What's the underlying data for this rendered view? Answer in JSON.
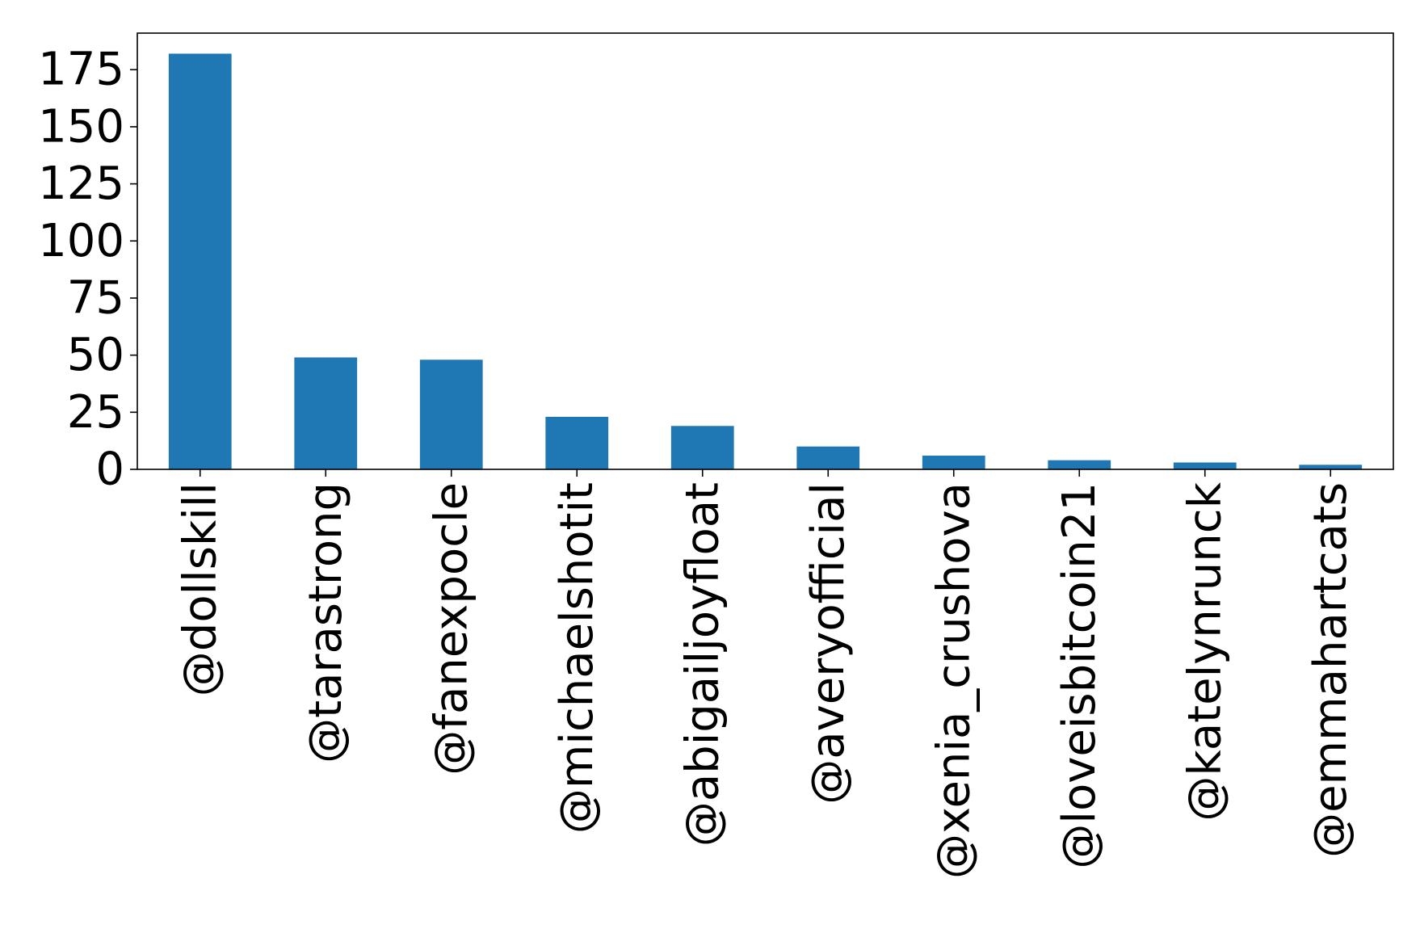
{
  "chart_data": {
    "type": "bar",
    "title": "",
    "xlabel": "",
    "ylabel": "",
    "categories": [
      "@dollskill",
      "@tarastrong",
      "@fanexpocle",
      "@michaelshotit",
      "@abigailjoyfloat",
      "@averyofficial",
      "@xenia_crushova",
      "@loveisbitcoin21",
      "@katelynrunck",
      "@emmahartcats"
    ],
    "values": [
      182,
      49,
      48,
      23,
      19,
      10,
      6,
      4,
      3,
      2
    ],
    "ylim": [
      0,
      191
    ],
    "yticks": [
      0,
      25,
      50,
      75,
      100,
      125,
      150,
      175
    ],
    "bar_color": "#1f77b4",
    "grid": false,
    "legend": "none"
  }
}
